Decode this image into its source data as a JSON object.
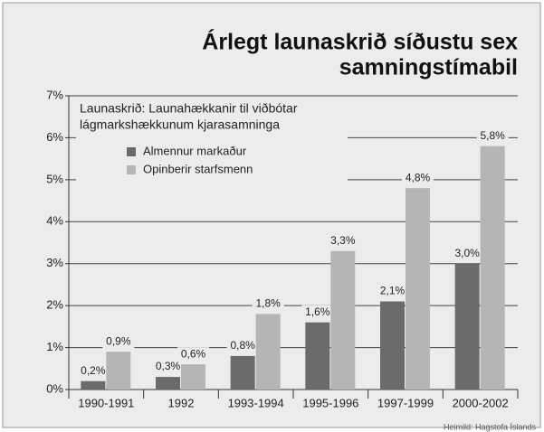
{
  "chart_data": {
    "type": "bar",
    "title_lines": [
      "Árlegt launaskrið síðustu sex",
      "samningstímabil"
    ],
    "subtitle_lines": [
      "Launaskrið: Launahækkanir til viðbótar",
      "lágmarkshækkunum kjarasamninga"
    ],
    "categories": [
      "1990-1991",
      "1992",
      "1993-1994",
      "1995-1996",
      "1997-1999",
      "2000-2002"
    ],
    "series": [
      {
        "name": "Almennur markaður",
        "color": "#6b6b6b",
        "values": [
          0.2,
          0.3,
          0.8,
          1.6,
          2.1,
          3.0
        ],
        "value_labels": [
          "0,2%",
          "0,3%",
          "0,8%",
          "1,6%",
          "2,1%",
          "3,0%"
        ]
      },
      {
        "name": "Opinberir starfsmenn",
        "color": "#b5b5b5",
        "values": [
          0.9,
          0.6,
          1.8,
          3.3,
          4.8,
          5.8
        ],
        "value_labels": [
          "0,9%",
          "0,6%",
          "1,8%",
          "3,3%",
          "4,8%",
          "5,8%"
        ]
      }
    ],
    "ylim": [
      0,
      7
    ],
    "yticks": [
      {
        "value": 0,
        "label": "0%"
      },
      {
        "value": 1,
        "label": "1%"
      },
      {
        "value": 2,
        "label": "2%"
      },
      {
        "value": 3,
        "label": "3%"
      },
      {
        "value": 4,
        "label": "4%"
      },
      {
        "value": 5,
        "label": "5%"
      },
      {
        "value": 6,
        "label": "6%"
      },
      {
        "value": 7,
        "label": "7%"
      }
    ],
    "grid": true,
    "source": "Heimild:  Hagstofa Íslands"
  }
}
